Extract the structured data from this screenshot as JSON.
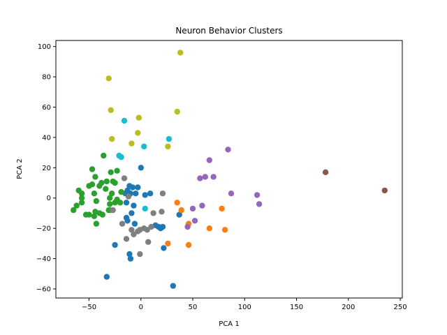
{
  "chart_data": {
    "type": "scatter",
    "title": "Neuron Behavior Clusters",
    "xlabel": "PCA 1",
    "ylabel": "PCA 2",
    "xlim": [
      -82,
      252
    ],
    "ylim": [
      -66,
      104
    ],
    "xticks": [
      -50,
      0,
      50,
      100,
      150,
      200,
      250
    ],
    "yticks": [
      -60,
      -40,
      -20,
      0,
      20,
      40,
      60,
      80,
      100
    ],
    "xtick_labels": [
      "−50",
      "0",
      "50",
      "100",
      "150",
      "200",
      "250"
    ],
    "ytick_labels": [
      "−60",
      "−40",
      "−20",
      "0",
      "20",
      "40",
      "60",
      "80",
      "100"
    ],
    "grid": false,
    "legend": "none",
    "series": [
      {
        "color": "#1f77b4",
        "points": [
          [
            -11,
            8
          ],
          [
            -13,
            5
          ],
          [
            -8,
            7
          ],
          [
            -10,
            3
          ],
          [
            -15,
            3
          ],
          [
            -14,
            -3
          ],
          [
            0,
            20
          ],
          [
            -3,
            7
          ],
          [
            -7,
            -5
          ],
          [
            -9,
            -10
          ],
          [
            -14,
            -13
          ],
          [
            -13,
            -15
          ],
          [
            -6,
            -17
          ],
          [
            -25,
            -31
          ],
          [
            -11,
            -37
          ],
          [
            -10,
            -40
          ],
          [
            -33,
            -52
          ],
          [
            31,
            -58
          ],
          [
            4,
            2
          ],
          [
            9,
            3
          ],
          [
            37,
            -11
          ],
          [
            14,
            -18
          ],
          [
            17,
            -19
          ],
          [
            19,
            -20
          ],
          [
            21,
            -19
          ],
          [
            22,
            -33
          ],
          [
            -5,
            3
          ]
        ]
      },
      {
        "color": "#ff7f0e",
        "points": [
          [
            35,
            -3
          ],
          [
            39,
            -8
          ],
          [
            46,
            -17
          ],
          [
            26,
            -30
          ],
          [
            46,
            -31
          ],
          [
            66,
            -20
          ],
          [
            78,
            -7
          ],
          [
            81,
            -21
          ]
        ]
      },
      {
        "color": "#2ca02c",
        "points": [
          [
            -47,
            19
          ],
          [
            -44,
            14
          ],
          [
            -47,
            9
          ],
          [
            -38,
            10
          ],
          [
            -40,
            8
          ],
          [
            -50,
            8
          ],
          [
            -45,
            3
          ],
          [
            -43,
            -2
          ],
          [
            -44,
            -9
          ],
          [
            -40,
            -10
          ],
          [
            -37,
            -11
          ],
          [
            -45,
            -12
          ],
          [
            -50,
            -11
          ],
          [
            -53,
            -11
          ],
          [
            -43,
            -17
          ],
          [
            -60,
            5
          ],
          [
            -57,
            3
          ],
          [
            -57,
            0
          ],
          [
            -57,
            -3
          ],
          [
            -62,
            -5
          ],
          [
            -65,
            -8
          ],
          [
            -36,
            28
          ],
          [
            -23,
            18
          ],
          [
            -29,
            17
          ],
          [
            -27,
            11
          ],
          [
            -25,
            10
          ],
          [
            -33,
            11
          ],
          [
            -34,
            6
          ],
          [
            -28,
            3
          ],
          [
            -30,
            0
          ],
          [
            -30,
            -4
          ],
          [
            -30,
            -8
          ],
          [
            -31,
            -8
          ],
          [
            -25,
            -3
          ],
          [
            -19,
            4
          ],
          [
            -23,
            -1
          ],
          [
            -20,
            -3
          ]
        ]
      },
      {
        "color": "#8c564b",
        "points": [
          [
            178,
            17
          ],
          [
            235,
            5
          ]
        ]
      },
      {
        "color": "#9467bd",
        "points": [
          [
            66,
            25
          ],
          [
            84,
            32
          ],
          [
            57,
            13
          ],
          [
            62,
            14
          ],
          [
            70,
            14
          ],
          [
            87,
            3
          ],
          [
            112,
            2
          ],
          [
            114,
            -4
          ],
          [
            59,
            -5
          ],
          [
            50,
            -7
          ],
          [
            52,
            -15
          ],
          [
            45,
            -19
          ]
        ]
      },
      {
        "color": "#7f7f7f",
        "points": [
          [
            -16,
            13
          ],
          [
            -12,
            1
          ],
          [
            -18,
            -17
          ],
          [
            -9,
            -21
          ],
          [
            -7,
            -24
          ],
          [
            -1,
            -21
          ],
          [
            -3,
            -22
          ],
          [
            3,
            -20
          ],
          [
            7,
            -29
          ],
          [
            6,
            -21
          ],
          [
            10,
            -19
          ],
          [
            12,
            -10
          ],
          [
            20,
            -9
          ],
          [
            21,
            3
          ],
          [
            -1,
            -37
          ],
          [
            -14,
            -27
          ],
          [
            -27,
            -8
          ]
        ]
      },
      {
        "color": "#bcbd22",
        "points": [
          [
            38,
            96
          ],
          [
            -31,
            79
          ],
          [
            -29,
            58
          ],
          [
            -2,
            53
          ],
          [
            35,
            57
          ],
          [
            -3,
            43
          ],
          [
            -28,
            39
          ],
          [
            -9,
            36
          ],
          [
            26,
            34
          ]
        ]
      },
      {
        "color": "#17becf",
        "points": [
          [
            -16,
            51
          ],
          [
            27,
            39
          ],
          [
            -21,
            28
          ],
          [
            -19,
            27
          ],
          [
            3,
            34
          ],
          [
            4,
            -7
          ]
        ]
      }
    ]
  }
}
